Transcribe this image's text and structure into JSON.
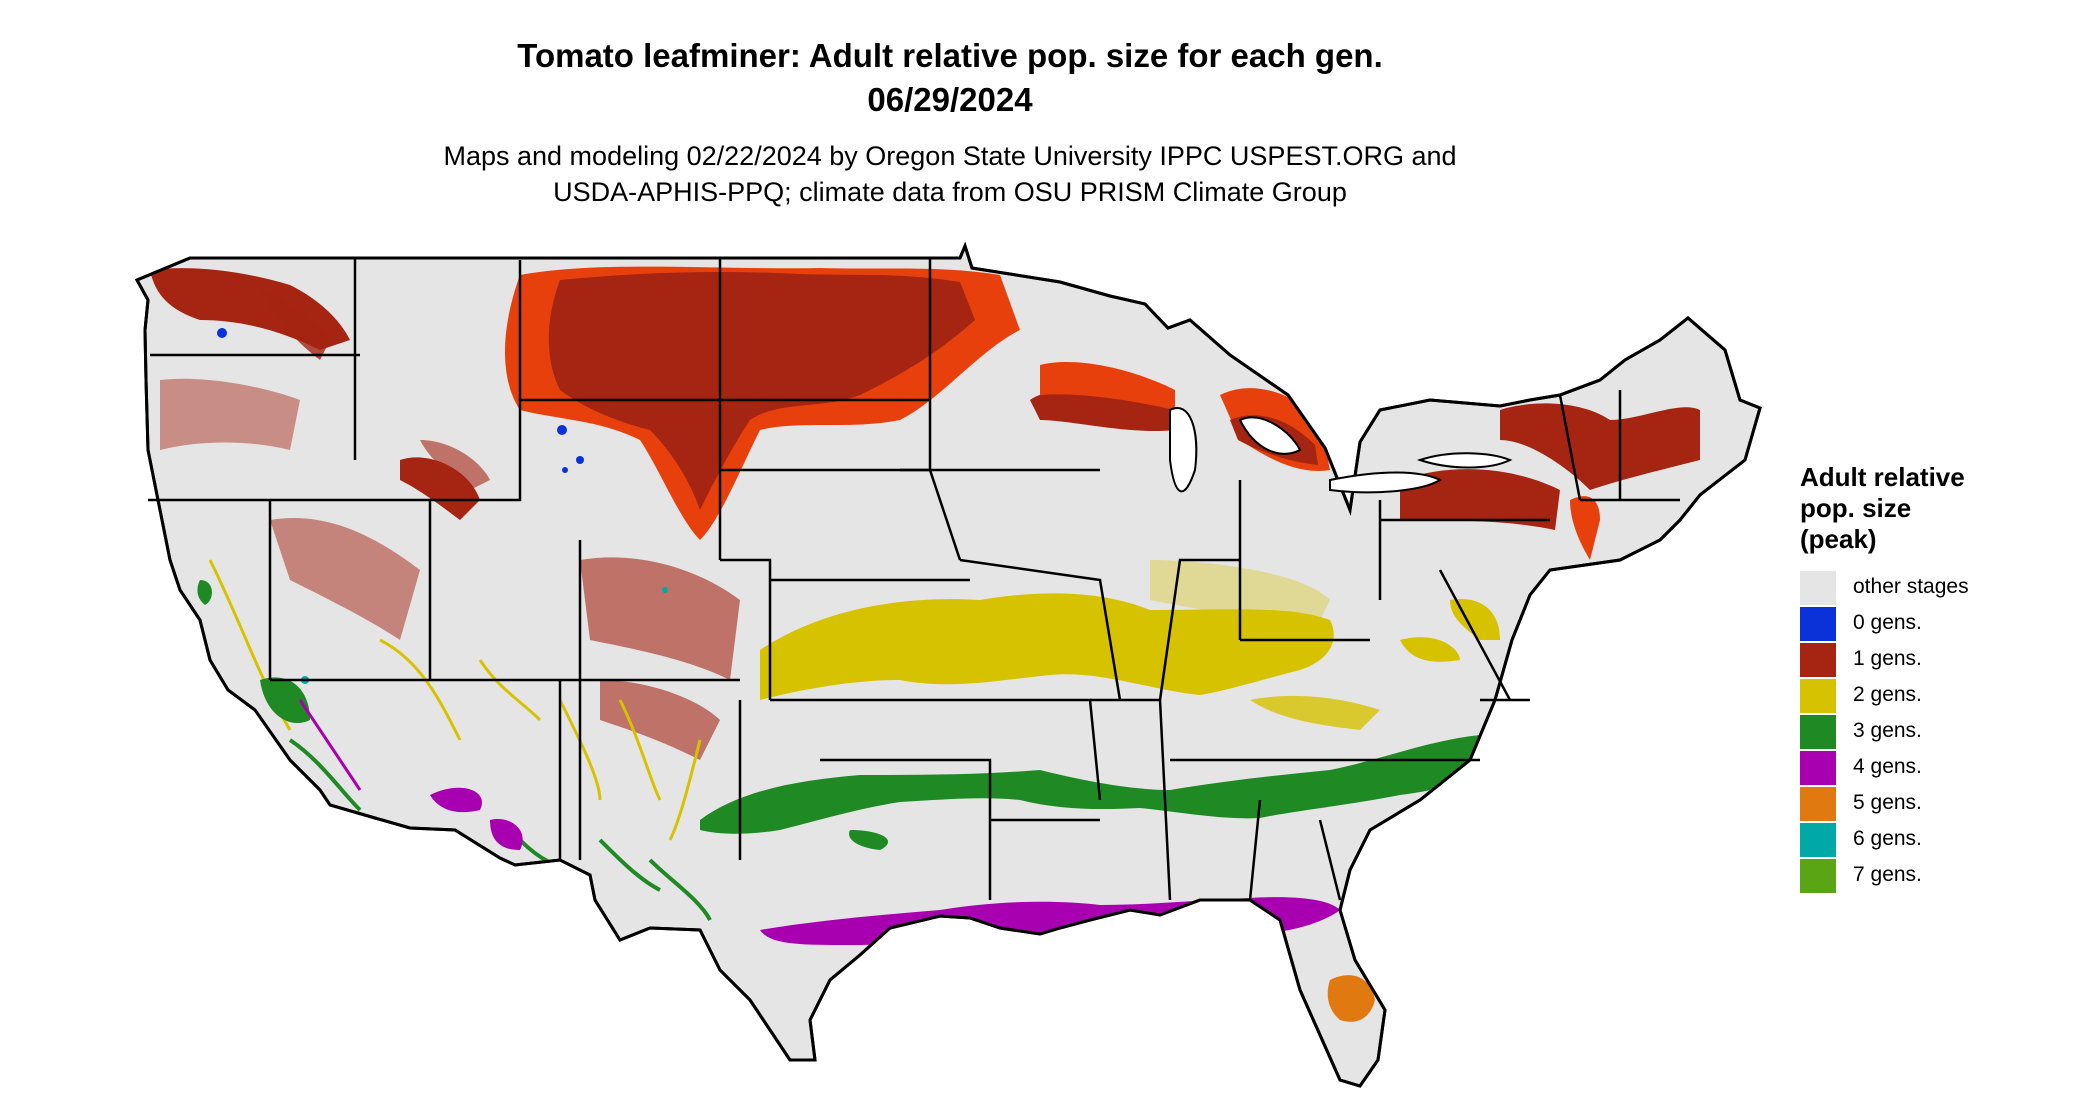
{
  "title_line1": "Tomato leafminer: Adult relative pop. size for each gen.",
  "title_line2": "06/29/2024",
  "subtitle_line1": "Maps and modeling 02/22/2024 by Oregon State University IPPC USPEST.ORG and",
  "subtitle_line2": "USDA-APHIS-PPQ; climate data from OSU PRISM Climate Group",
  "legend": {
    "title_lines": [
      "Adult relative",
      "pop. size",
      "(peak)"
    ],
    "items": [
      {
        "label": "other stages",
        "color": "#e5e5e5"
      },
      {
        "label": "0 gens.",
        "color": "#0a32d8"
      },
      {
        "label": "1 gens.",
        "color": "#a52412"
      },
      {
        "label": "2 gens.",
        "color": "#d7c200"
      },
      {
        "label": "3 gens.",
        "color": "#1f8a24"
      },
      {
        "label": "4 gens.",
        "color": "#a800b0"
      },
      {
        "label": "5 gens.",
        "color": "#e07a10"
      },
      {
        "label": "6 gens.",
        "color": "#00a8a8"
      },
      {
        "label": "7 gens.",
        "color": "#5aa514"
      }
    ]
  },
  "colors": {
    "land": "#e5e5e5",
    "border": "#000000",
    "gen1_light": "#e8400d"
  }
}
